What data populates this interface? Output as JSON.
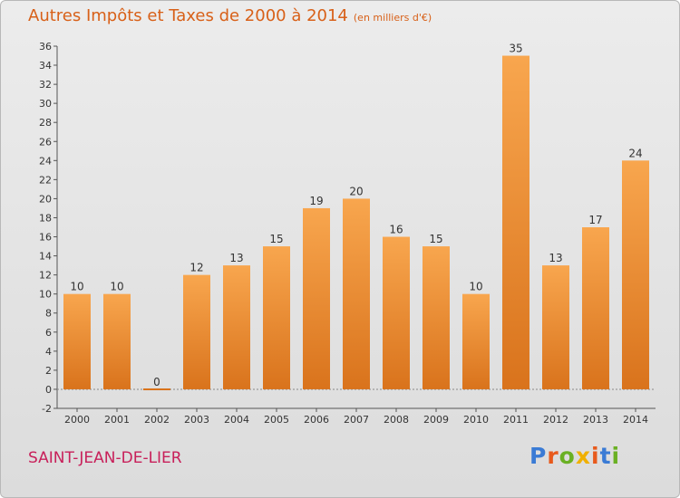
{
  "title": "Autres Impôts et Taxes de 2000 à 2014",
  "unit": "(en milliers d'€)",
  "place": "SAINT-JEAN-DE-LIER",
  "logo": {
    "text": "Proxiti",
    "colors": [
      "#3a7bd5",
      "#e85a1c",
      "#6ab023",
      "#f0b000",
      "#e85a1c",
      "#3a7bd5",
      "#6ab023"
    ]
  },
  "colors": {
    "bar_top": "#f8a64e",
    "bar_bottom": "#d9731c",
    "title": "#d86018",
    "place": "#c8205a"
  },
  "chart_data": {
    "type": "bar",
    "title": "Autres Impôts et Taxes de 2000 à 2014",
    "xlabel": "",
    "ylabel": "",
    "ylim": [
      -2,
      36
    ],
    "ytick_step": 2,
    "grid": false,
    "categories": [
      "2000",
      "2001",
      "2002",
      "2003",
      "2004",
      "2005",
      "2006",
      "2007",
      "2008",
      "2009",
      "2010",
      "2011",
      "2012",
      "2013",
      "2014"
    ],
    "values": [
      10,
      10,
      0,
      12,
      13,
      15,
      19,
      20,
      16,
      15,
      10,
      35,
      13,
      17,
      24
    ]
  }
}
